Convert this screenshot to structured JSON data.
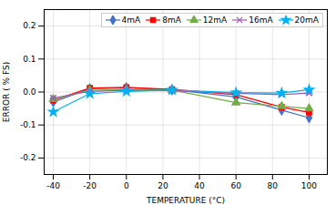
{
  "chart_data": {
    "type": "line",
    "xlabel": "TEMPERATURE (°C)",
    "ylabel": "ERROR ( % FS)",
    "xlim": [
      -45,
      110
    ],
    "ylim": [
      -0.25,
      0.25
    ],
    "xticks": [
      -40,
      -20,
      0,
      20,
      40,
      60,
      80,
      100
    ],
    "yticks": [
      -0.2,
      -0.1,
      {
        "value": 0,
        "label": "0.0"
      },
      0.1,
      0.2
    ],
    "grid": true,
    "legend": "upper right",
    "x": [
      -40,
      -20,
      0,
      25,
      60,
      85,
      100
    ],
    "series": [
      {
        "name": "4mA",
        "color": "#4472C4",
        "marker": "diamond",
        "values": [
          -0.03,
          0.01,
          0.013,
          0.007,
          -0.015,
          -0.055,
          -0.078
        ]
      },
      {
        "name": "8mA",
        "color": "#FF0000",
        "marker": "square",
        "values": [
          -0.025,
          0.012,
          0.014,
          0.008,
          -0.008,
          -0.046,
          -0.062
        ]
      },
      {
        "name": "12mA",
        "color": "#70AD47",
        "marker": "triangle",
        "values": [
          -0.022,
          0.005,
          0.008,
          0.006,
          -0.032,
          -0.043,
          -0.05
        ]
      },
      {
        "name": "16mA",
        "color": "#9B59B6",
        "marker": "times",
        "values": [
          -0.018,
          0.002,
          0.005,
          0.004,
          -0.004,
          -0.008,
          -0.003
        ]
      },
      {
        "name": "20mA",
        "color": "#00B0F0",
        "marker": "star",
        "values": [
          -0.06,
          -0.005,
          0.002,
          0.006,
          -0.002,
          -0.003,
          0.007
        ]
      }
    ]
  }
}
